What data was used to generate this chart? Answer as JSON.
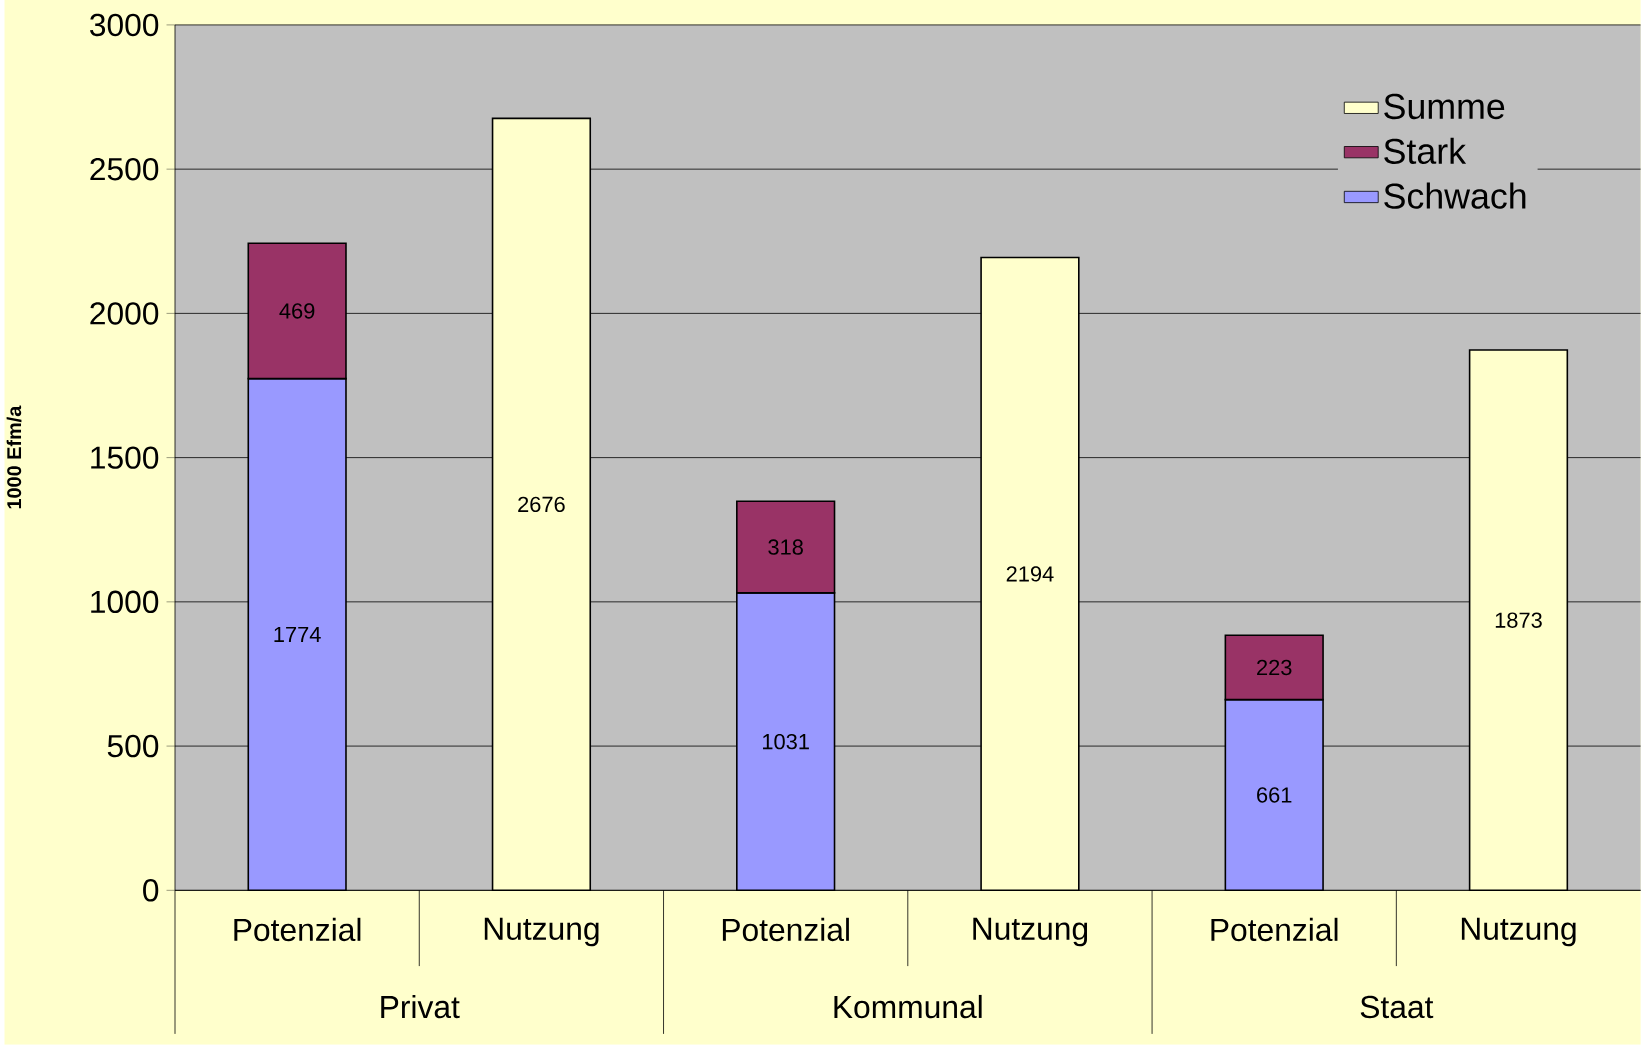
{
  "chart_data": {
    "type": "bar",
    "stacked": true,
    "ylabel": "1000 Efm/a",
    "categories": [
      "Potenzial",
      "Nutzung",
      "Potenzial",
      "Nutzung",
      "Potenzial",
      "Nutzung"
    ],
    "annotations": [
      "Privat",
      "Kommunal",
      "Staat"
    ],
    "series": [
      {
        "name": "Schwach",
        "color": "#9999ff",
        "values": [
          1774,
          null,
          1031,
          null,
          661,
          null
        ]
      },
      {
        "name": "Stark",
        "color": "#993366",
        "values": [
          469,
          null,
          318,
          null,
          223,
          null
        ]
      },
      {
        "name": "Summe",
        "color": "#ffffcc",
        "values": [
          null,
          2676,
          null,
          2194,
          null,
          1873
        ]
      }
    ],
    "ylim": [
      0,
      3000
    ],
    "yticks": [
      0,
      500,
      1000,
      1500,
      2000,
      2500,
      3000
    ],
    "grid": "y",
    "legend": "top right",
    "data_labels": true
  }
}
